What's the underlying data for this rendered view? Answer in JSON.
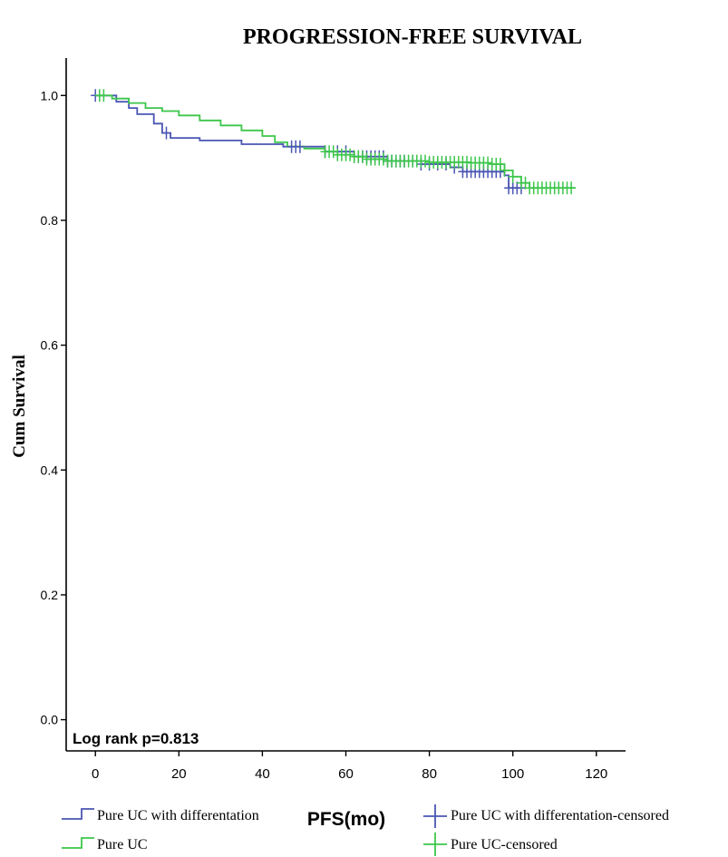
{
  "chart_data": {
    "type": "line",
    "subtype": "kaplan-meier",
    "title": "PROGRESSION-FREE SURVIVAL",
    "xlabel": "PFS(mo)",
    "ylabel": "Cum Survival",
    "xlim": [
      -7,
      127
    ],
    "ylim": [
      -0.05,
      1.06
    ],
    "x_ticks": [
      0,
      20,
      40,
      60,
      80,
      100,
      120
    ],
    "y_ticks": [
      0.0,
      0.2,
      0.4,
      0.6,
      0.8,
      1.0
    ],
    "x_tick_labels": [
      "0",
      "20",
      "40",
      "60",
      "80",
      "100",
      "120"
    ],
    "y_tick_labels": [
      "0.0",
      "0.2",
      "0.4",
      "0.6",
      "0.8",
      "1.0"
    ],
    "grid": false,
    "legend_position": "bottom",
    "annotation": "Log rank p=0.813",
    "legend": {
      "diff": "Pure UC with differentation",
      "pure": "Pure UC",
      "diff_censored": "Pure UC with differentation-censored",
      "pure_censored": "Pure UC-censored"
    },
    "series": [
      {
        "name": "Pure UC with differentation",
        "color": "#4a56b3",
        "steps": [
          [
            0,
            1.0
          ],
          [
            5,
            0.99
          ],
          [
            8,
            0.98
          ],
          [
            10,
            0.97
          ],
          [
            14,
            0.955
          ],
          [
            16,
            0.94
          ],
          [
            18,
            0.932
          ],
          [
            25,
            0.928
          ],
          [
            35,
            0.922
          ],
          [
            45,
            0.918
          ],
          [
            55,
            0.91
          ],
          [
            62,
            0.902
          ],
          [
            70,
            0.895
          ],
          [
            78,
            0.89
          ],
          [
            85,
            0.885
          ],
          [
            88,
            0.878
          ],
          [
            98,
            0.872
          ],
          [
            99,
            0.852
          ],
          [
            102,
            0.852
          ]
        ],
        "censored": [
          0,
          17,
          47,
          48,
          49,
          55,
          58,
          60,
          62,
          63,
          64,
          65,
          66,
          67,
          68,
          69,
          70,
          71,
          72,
          73,
          74,
          76,
          78,
          80,
          82,
          84,
          86,
          88,
          89,
          90,
          91,
          92,
          93,
          94,
          95,
          96,
          97,
          99,
          100,
          101,
          102
        ]
      },
      {
        "name": "Pure UC",
        "color": "#3cc64a",
        "steps": [
          [
            0,
            1.0
          ],
          [
            4,
            0.995
          ],
          [
            8,
            0.988
          ],
          [
            12,
            0.98
          ],
          [
            16,
            0.975
          ],
          [
            20,
            0.968
          ],
          [
            25,
            0.96
          ],
          [
            30,
            0.952
          ],
          [
            35,
            0.944
          ],
          [
            40,
            0.935
          ],
          [
            43,
            0.925
          ],
          [
            46,
            0.918
          ],
          [
            50,
            0.915
          ],
          [
            55,
            0.91
          ],
          [
            58,
            0.905
          ],
          [
            62,
            0.902
          ],
          [
            65,
            0.898
          ],
          [
            70,
            0.895
          ],
          [
            80,
            0.893
          ],
          [
            90,
            0.892
          ],
          [
            95,
            0.89
          ],
          [
            98,
            0.88
          ],
          [
            100,
            0.87
          ],
          [
            102,
            0.86
          ],
          [
            104,
            0.852
          ],
          [
            115,
            0.852
          ]
        ],
        "censored": [
          1,
          2,
          55,
          56,
          57,
          58,
          59,
          60,
          61,
          62,
          63,
          64,
          65,
          66,
          67,
          68,
          69,
          70,
          71,
          72,
          73,
          74,
          75,
          76,
          77,
          78,
          79,
          80,
          81,
          82,
          83,
          84,
          85,
          86,
          87,
          88,
          89,
          90,
          91,
          92,
          93,
          94,
          95,
          96,
          97,
          98,
          100,
          102,
          103,
          104,
          105,
          106,
          107,
          108,
          109,
          110,
          111,
          112,
          113,
          114
        ]
      }
    ]
  }
}
